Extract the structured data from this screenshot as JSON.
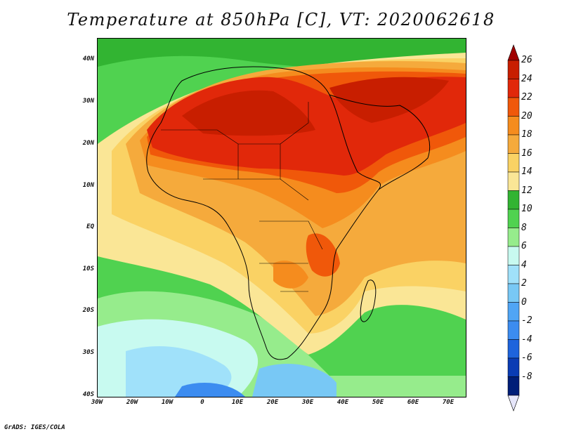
{
  "title": "Temperature at 850hPa [C], VT: 2020062618",
  "footer": "GrADS: IGES/COLA",
  "map": {
    "lon_ticks": [
      "30W",
      "20W",
      "10W",
      "0",
      "10E",
      "20E",
      "30E",
      "40E",
      "50E",
      "60E",
      "70E"
    ],
    "lat_ticks": [
      "40N",
      "30N",
      "20N",
      "10N",
      "EQ",
      "10S",
      "20S",
      "30S",
      "40S"
    ],
    "lon_range": [
      -30,
      75
    ],
    "lat_range": [
      -40,
      45
    ]
  },
  "colorbar": {
    "levels": [
      "26",
      "24",
      "22",
      "20",
      "18",
      "16",
      "14",
      "12",
      "10",
      "8",
      "6",
      "4",
      "2",
      "0",
      "-2",
      "-4",
      "-6",
      "-8"
    ],
    "colors": [
      "#c81e00",
      "#e1280a",
      "#f0580a",
      "#f58c1e",
      "#f5aa3c",
      "#fad264",
      "#fae696",
      "#32b432",
      "#50d250",
      "#96ec8c",
      "#c8faf0",
      "#a0e1fa",
      "#78c8f5",
      "#50a5f5",
      "#3c8cf0",
      "#1e64dc",
      "#0a3cb4",
      "#001e78"
    ],
    "under_color": "#e6e6fa",
    "over_color": "#a00000"
  }
}
